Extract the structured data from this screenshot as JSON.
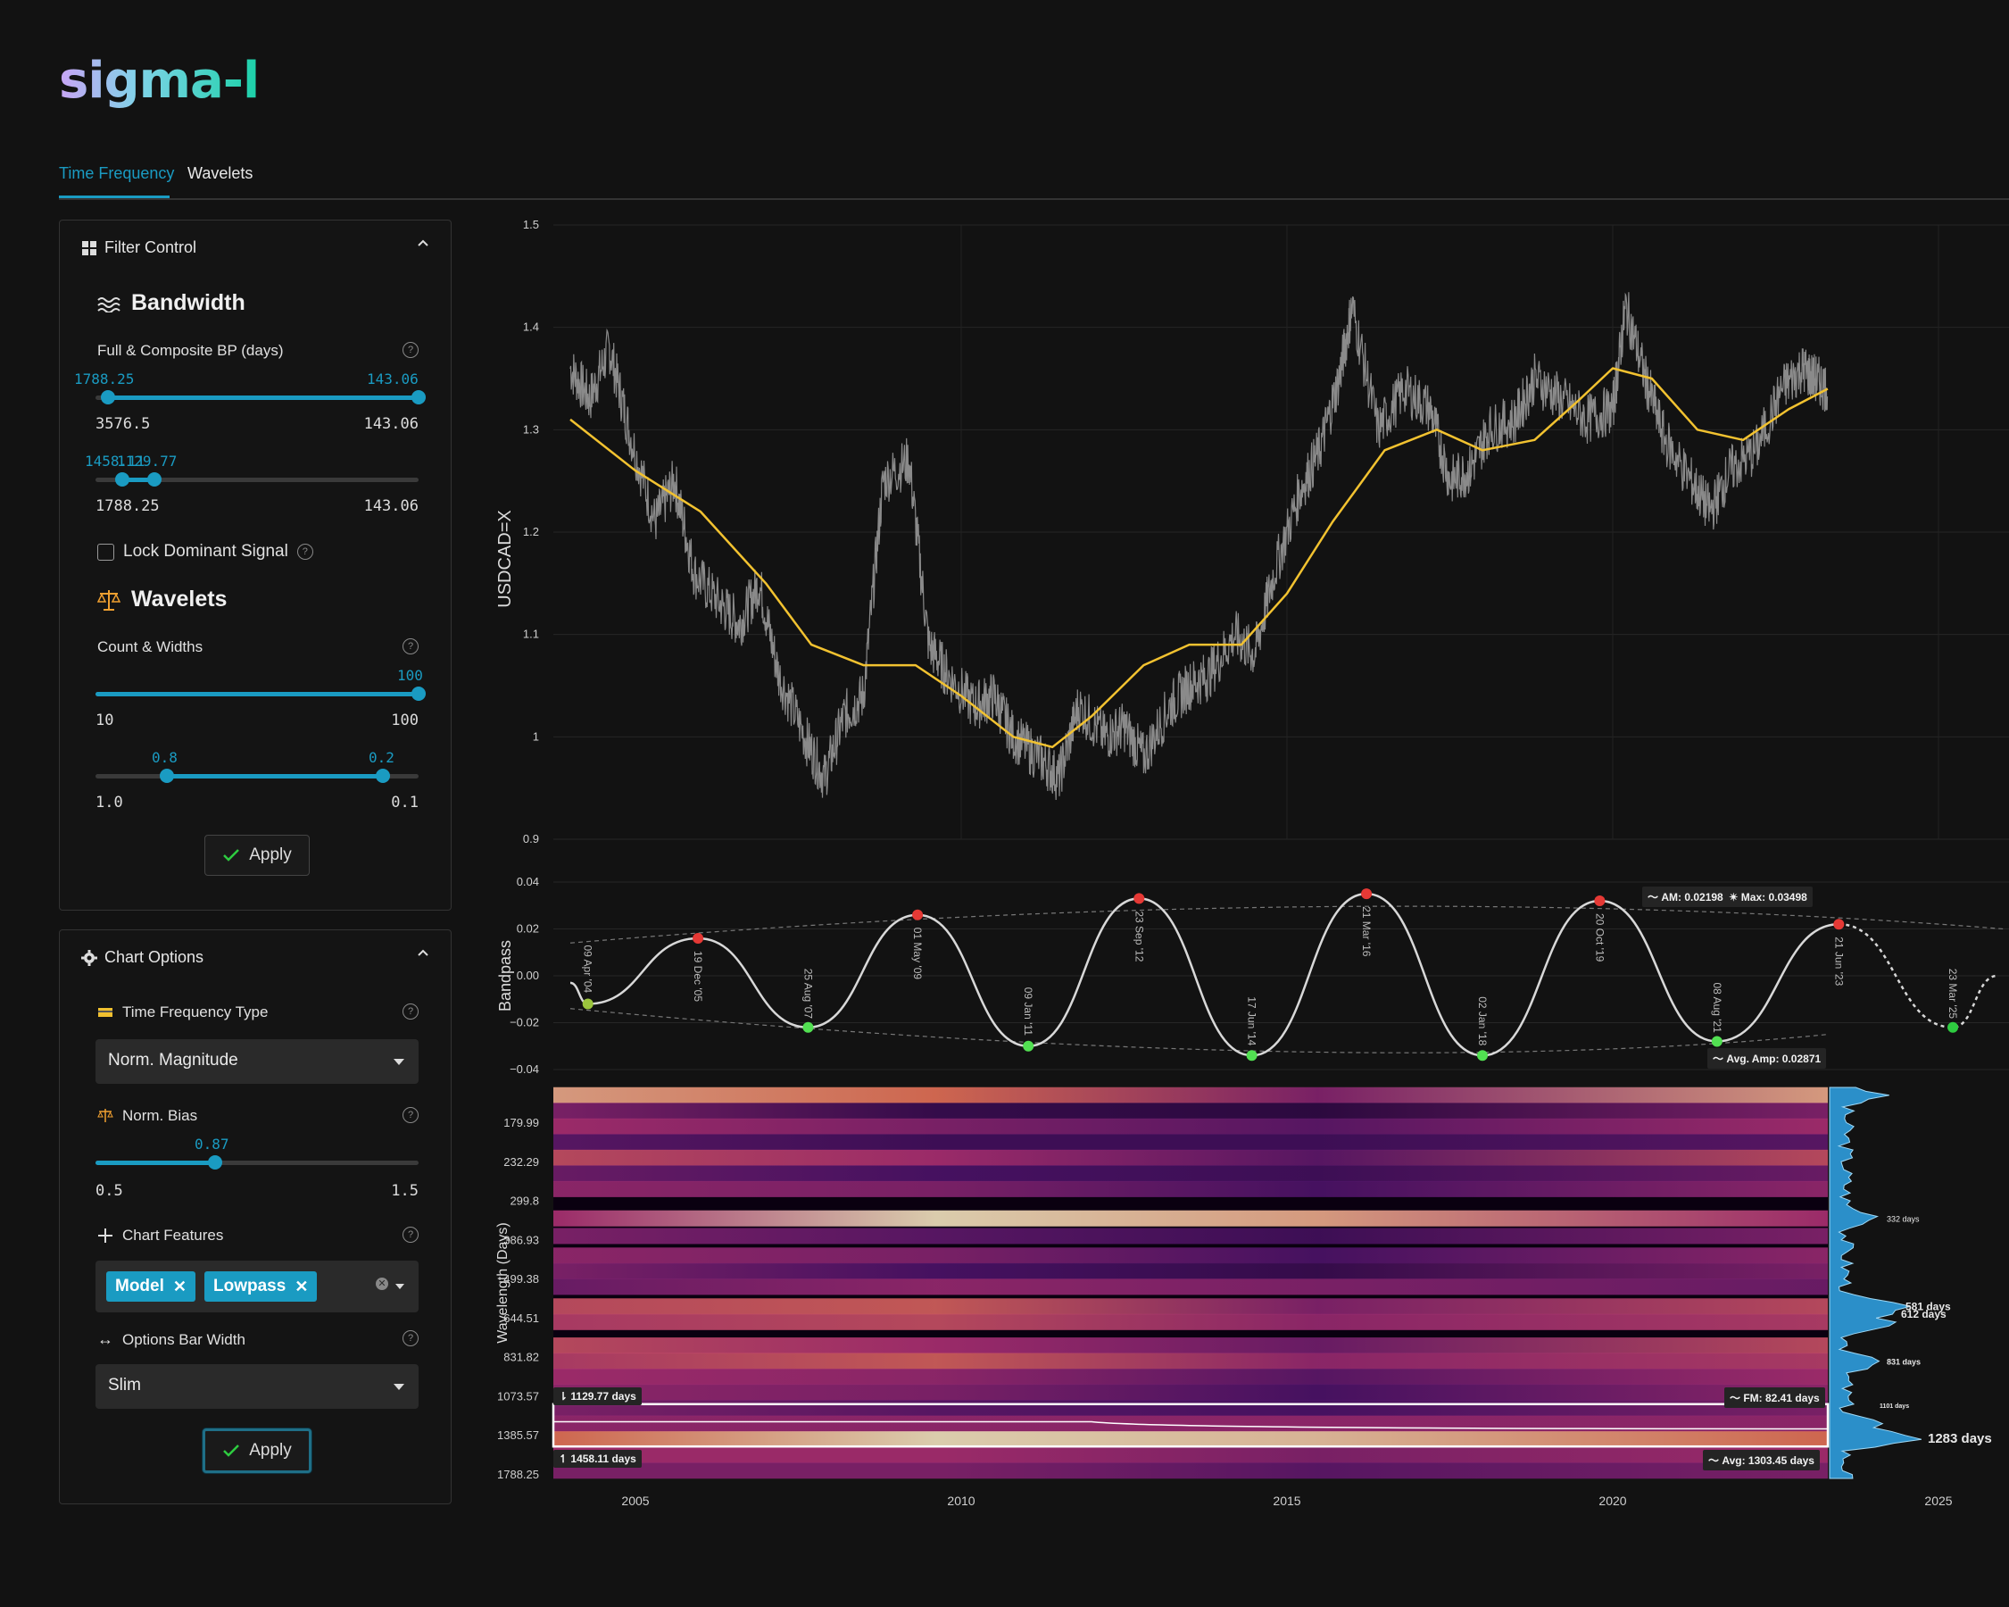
{
  "app": {
    "logo": "sigma-l"
  },
  "tabs": [
    {
      "label": "Time Frequency",
      "active": true
    },
    {
      "label": "Wavelets",
      "active": false
    }
  ],
  "filter_control": {
    "title": "Filter Control",
    "bandwidth": {
      "title": "Bandwidth",
      "full_label": "Full & Composite BP (days)",
      "slider1": {
        "low": "1788.25",
        "high": "143.06",
        "min": "3576.5",
        "max": "143.06"
      },
      "slider2": {
        "low": "1458.11",
        "high": "1129.77",
        "min": "1788.25",
        "max": "143.06"
      },
      "lock_label": "Lock Dominant Signal"
    },
    "wavelets": {
      "title": "Wavelets",
      "count_label": "Count & Widths",
      "slider1": {
        "value": "100",
        "min": "10",
        "max": "100"
      },
      "slider2": {
        "low": "0.8",
        "high": "0.2",
        "min": "1.0",
        "max": "0.1"
      }
    },
    "apply_label": "Apply"
  },
  "chart_options": {
    "title": "Chart Options",
    "tf_type_label": "Time Frequency Type",
    "tf_type_value": "Norm. Magnitude",
    "norm_bias_label": "Norm. Bias",
    "norm_bias": {
      "value": "0.87",
      "min": "0.5",
      "max": "1.5"
    },
    "features_label": "Chart Features",
    "features": [
      "Model",
      "Lowpass"
    ],
    "bar_width_label": "Options Bar Width",
    "bar_width_value": "Slim",
    "apply_label": "Apply"
  },
  "chart_data": [
    {
      "type": "line",
      "ylabel": "USDCAD=X",
      "ylim": [
        0.9,
        1.5
      ],
      "yticks": [
        "1.5",
        "1.4",
        "1.3",
        "1.2",
        "1.1",
        "1",
        "0.9"
      ],
      "series": [
        {
          "color": "#8a8a8a",
          "x": [
            2004.0,
            2004.3,
            2004.6,
            2004.9,
            2005.3,
            2005.6,
            2005.9,
            2006.3,
            2006.6,
            2006.9,
            2007.2,
            2007.6,
            2007.9,
            2008.2,
            2008.5,
            2008.8,
            2009.2,
            2009.5,
            2009.8,
            2010.2,
            2010.5,
            2010.8,
            2011.2,
            2011.5,
            2011.8,
            2012.2,
            2012.5,
            2012.8,
            2013.2,
            2013.5,
            2013.8,
            2014.2,
            2014.5,
            2014.8,
            2015.2,
            2015.5,
            2015.8,
            2016.0,
            2016.4,
            2016.8,
            2017.2,
            2017.5,
            2017.8,
            2018.1,
            2018.5,
            2018.8,
            2019.2,
            2019.6,
            2020.0,
            2020.2,
            2020.5,
            2020.8,
            2021.2,
            2021.5,
            2021.8,
            2022.2,
            2022.6,
            2022.9,
            2023.1,
            2023.3
          ],
          "values": [
            1.36,
            1.33,
            1.38,
            1.3,
            1.21,
            1.25,
            1.16,
            1.13,
            1.11,
            1.15,
            1.06,
            1.0,
            0.96,
            1.02,
            1.04,
            1.25,
            1.27,
            1.09,
            1.06,
            1.03,
            1.04,
            1.0,
            0.98,
            0.96,
            1.03,
            1.0,
            1.01,
            0.98,
            1.03,
            1.05,
            1.06,
            1.1,
            1.08,
            1.16,
            1.24,
            1.28,
            1.35,
            1.42,
            1.3,
            1.34,
            1.32,
            1.25,
            1.26,
            1.3,
            1.31,
            1.35,
            1.33,
            1.31,
            1.32,
            1.42,
            1.35,
            1.29,
            1.25,
            1.22,
            1.26,
            1.28,
            1.34,
            1.36,
            1.35,
            1.34
          ]
        },
        {
          "color": "#f2c230",
          "x": [
            2004.0,
            2005.0,
            2006.0,
            2007.0,
            2007.7,
            2008.5,
            2009.3,
            2010.0,
            2010.8,
            2011.4,
            2012.0,
            2012.8,
            2013.5,
            2014.3,
            2015.0,
            2015.7,
            2016.5,
            2017.3,
            2018.0,
            2018.8,
            2019.5,
            2020.0,
            2020.6,
            2021.3,
            2022.0,
            2022.7,
            2023.3
          ],
          "values": [
            1.31,
            1.26,
            1.22,
            1.15,
            1.09,
            1.07,
            1.07,
            1.04,
            1.0,
            0.99,
            1.02,
            1.07,
            1.09,
            1.09,
            1.14,
            1.21,
            1.28,
            1.3,
            1.28,
            1.29,
            1.33,
            1.36,
            1.35,
            1.3,
            1.29,
            1.32,
            1.34
          ]
        }
      ]
    },
    {
      "type": "line",
      "ylabel": "Bandpass",
      "ylim": [
        -0.04,
        0.04
      ],
      "yticks": [
        "0.04",
        "0.02",
        "0.00",
        "−0.02",
        "−0.04"
      ],
      "peaks": [
        {
          "date": "19 Dec '05",
          "x": 2005.96,
          "y": 0.016
        },
        {
          "date": "01 May '09",
          "x": 2009.33,
          "y": 0.026
        },
        {
          "date": "23 Sep '12",
          "x": 2012.73,
          "y": 0.033
        },
        {
          "date": "21 Mar '16",
          "x": 2016.22,
          "y": 0.035
        },
        {
          "date": "20 Oct '19",
          "x": 2019.8,
          "y": 0.032
        },
        {
          "date": "21 Jun '23",
          "x": 2023.47,
          "y": 0.022
        }
      ],
      "troughs": [
        {
          "date": "09 Apr '04",
          "x": 2004.27,
          "y": -0.012
        },
        {
          "date": "25 Aug '07",
          "x": 2007.65,
          "y": -0.022
        },
        {
          "date": "09 Jan '11",
          "x": 2011.03,
          "y": -0.03
        },
        {
          "date": "17 Jun '14",
          "x": 2014.46,
          "y": -0.034
        },
        {
          "date": "02 Jan '18",
          "x": 2018.0,
          "y": -0.034
        },
        {
          "date": "08 Aug '21",
          "x": 2021.6,
          "y": -0.028
        },
        {
          "date": "23 Mar '25",
          "x": 2025.22,
          "y": -0.022
        }
      ],
      "annotations": {
        "am": "AM: 0.02198",
        "max": "Max: 0.03498",
        "avg_amp": "Avg. Amp: 0.02871"
      }
    },
    {
      "type": "heatmap",
      "ylabel": "Wavelength (Days)",
      "yticks": [
        "179.99",
        "232.29",
        "299.8",
        "386.93",
        "499.38",
        "644.51",
        "831.82",
        "1073.57",
        "1385.57",
        "1788.25"
      ],
      "xticks": [
        "2005",
        "2010",
        "2015",
        "2020",
        "2025"
      ],
      "band_labels": {
        "top": "1129.77 days",
        "bottom": "1458.11 days",
        "fm": "FM: 82.41 days",
        "avg": "Avg: 1303.45 days"
      },
      "histogram_labels": [
        "332 days",
        "581 days",
        "612 days",
        "831 days",
        "1101 days",
        "1283 days"
      ]
    }
  ]
}
